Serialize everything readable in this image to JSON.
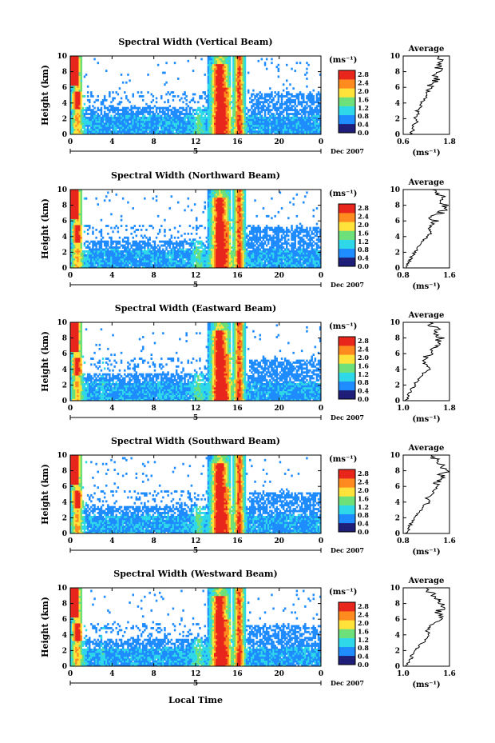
{
  "x_axis_label": "Local Time",
  "colors": {
    "low": "#1e1e78",
    "mid": "#1e8cff",
    "cyan": "#2ed8e8",
    "green": "#6ee07a",
    "yellow": "#ffe23a",
    "orange": "#ff8a1e",
    "high": "#e8261c"
  },
  "chart_data": [
    {
      "type": "heatmap",
      "title": "Spectral Width (Vertical Beam)",
      "ylabel": "Height (km)",
      "xlabel": "Local Time",
      "x_ticks": [
        "0",
        "4",
        "8",
        "12",
        "16",
        "20",
        "0"
      ],
      "xlim": [
        0,
        24
      ],
      "y_ticks": [
        "0",
        "2",
        "4",
        "6",
        "8",
        "10"
      ],
      "ylim": [
        0,
        10
      ],
      "date_marker": "5",
      "date_label": "Dec 2007",
      "colorbar": {
        "unit": "(ms⁻¹)",
        "ticks": [
          "0.0",
          "0.4",
          "0.8",
          "1.2",
          "1.6",
          "2.0",
          "2.4",
          "2.8"
        ],
        "range": [
          0.0,
          3.0
        ]
      },
      "average": {
        "title": "Average",
        "xlabel": "(ms⁻¹)",
        "x_ticks": [
          "0.6",
          "1.8"
        ],
        "xlim": [
          0.6,
          1.8
        ],
        "y_ticks": [
          "0",
          "2",
          "4",
          "6",
          "8",
          "10"
        ],
        "heights": [
          0,
          0.5,
          1,
          1.5,
          2,
          2.5,
          3,
          3.5,
          4,
          4.5,
          5,
          5.5,
          6,
          6.5,
          7,
          7.5,
          8,
          8.5,
          9,
          9.5,
          10
        ],
        "values": [
          0.75,
          0.9,
          0.85,
          0.95,
          0.9,
          1.0,
          0.95,
          1.1,
          1.05,
          1.15,
          1.2,
          1.25,
          1.35,
          1.3,
          1.5,
          1.4,
          1.6,
          1.5,
          1.55,
          1.6,
          1.5
        ]
      }
    },
    {
      "type": "heatmap",
      "title": "Spectral Width (Northward Beam)",
      "ylabel": "Height (km)",
      "xlabel": "Local Time",
      "x_ticks": [
        "0",
        "4",
        "8",
        "12",
        "16",
        "20",
        "0"
      ],
      "xlim": [
        0,
        24
      ],
      "y_ticks": [
        "0",
        "2",
        "4",
        "6",
        "8",
        "10"
      ],
      "ylim": [
        0,
        10
      ],
      "date_marker": "5",
      "date_label": "Dec 2007",
      "colorbar": {
        "unit": "(ms⁻¹)",
        "ticks": [
          "0.0",
          "0.4",
          "0.8",
          "1.2",
          "1.6",
          "2.0",
          "2.4",
          "2.8"
        ],
        "range": [
          0.0,
          3.0
        ]
      },
      "average": {
        "title": "Average",
        "xlabel": "(ms⁻¹)",
        "x_ticks": [
          "0.8",
          "1.6"
        ],
        "xlim": [
          0.8,
          1.6
        ],
        "y_ticks": [
          "0",
          "2",
          "4",
          "6",
          "8",
          "10"
        ],
        "heights": [
          0,
          0.5,
          1,
          1.5,
          2,
          2.5,
          3,
          3.5,
          4,
          4.5,
          5,
          5.5,
          6,
          6.5,
          7,
          7.5,
          8,
          8.5,
          9,
          9.5,
          10
        ],
        "values": [
          0.85,
          0.88,
          0.92,
          0.95,
          1.0,
          1.05,
          1.1,
          1.15,
          1.2,
          1.3,
          1.25,
          1.3,
          1.35,
          1.3,
          1.45,
          1.5,
          1.55,
          1.45,
          1.5,
          1.35,
          1.3
        ]
      }
    },
    {
      "type": "heatmap",
      "title": "Spectral Width (Eastward Beam)",
      "ylabel": "Height (km)",
      "xlabel": "Local Time",
      "x_ticks": [
        "0",
        "4",
        "8",
        "12",
        "16",
        "20",
        "0"
      ],
      "xlim": [
        0,
        24
      ],
      "y_ticks": [
        "0",
        "2",
        "4",
        "6",
        "8",
        "10"
      ],
      "ylim": [
        0,
        10
      ],
      "date_marker": "5",
      "date_label": "Dec 2007",
      "colorbar": {
        "unit": "(ms⁻¹)",
        "ticks": [
          "0.0",
          "0.4",
          "0.8",
          "1.2",
          "1.6",
          "2.0",
          "2.4",
          "2.8"
        ],
        "range": [
          0.0,
          3.0
        ]
      },
      "average": {
        "title": "Average",
        "xlabel": "(ms⁻¹)",
        "x_ticks": [
          "1.0",
          "1.8"
        ],
        "xlim": [
          1.0,
          1.8
        ],
        "y_ticks": [
          "0",
          "2",
          "4",
          "6",
          "8",
          "10"
        ],
        "heights": [
          0,
          0.5,
          1,
          1.5,
          2,
          2.5,
          3,
          3.5,
          4,
          4.5,
          5,
          5.5,
          6,
          6.5,
          7,
          7.5,
          8,
          8.5,
          9,
          9.5,
          10
        ],
        "values": [
          1.05,
          1.08,
          1.1,
          1.15,
          1.2,
          1.25,
          1.3,
          1.35,
          1.45,
          1.4,
          1.35,
          1.4,
          1.45,
          1.5,
          1.55,
          1.6,
          1.65,
          1.55,
          1.6,
          1.5,
          1.45
        ]
      }
    },
    {
      "type": "heatmap",
      "title": "Spectral Width (Southward Beam)",
      "ylabel": "Height (km)",
      "xlabel": "Local Time",
      "x_ticks": [
        "0",
        "4",
        "8",
        "12",
        "16",
        "20",
        "0"
      ],
      "xlim": [
        0,
        24
      ],
      "y_ticks": [
        "0",
        "2",
        "4",
        "6",
        "8",
        "10"
      ],
      "ylim": [
        0,
        10
      ],
      "date_marker": "5",
      "date_label": "Dec 2007",
      "colorbar": {
        "unit": "(ms⁻¹)",
        "ticks": [
          "0.0",
          "0.4",
          "0.8",
          "1.2",
          "1.6",
          "2.0",
          "2.4",
          "2.8"
        ],
        "range": [
          0.0,
          3.0
        ]
      },
      "average": {
        "title": "Average",
        "xlabel": "(ms⁻¹)",
        "x_ticks": [
          "0.8",
          "1.6"
        ],
        "xlim": [
          0.8,
          1.6
        ],
        "y_ticks": [
          "0",
          "2",
          "4",
          "6",
          "8",
          "10"
        ],
        "heights": [
          0,
          0.5,
          1,
          1.5,
          2,
          2.5,
          3,
          3.5,
          4,
          4.5,
          5,
          5.5,
          6,
          6.5,
          7,
          7.5,
          8,
          8.5,
          9,
          9.5,
          10
        ],
        "values": [
          0.85,
          0.9,
          0.92,
          0.95,
          1.0,
          1.05,
          1.1,
          1.15,
          1.25,
          1.2,
          1.3,
          1.35,
          1.4,
          1.35,
          1.5,
          1.45,
          1.55,
          1.5,
          1.45,
          1.35,
          1.3
        ]
      }
    },
    {
      "type": "heatmap",
      "title": "Spectral Width (Westward Beam)",
      "ylabel": "Height (km)",
      "xlabel": "Local Time",
      "x_ticks": [
        "0",
        "4",
        "8",
        "12",
        "16",
        "20",
        "0"
      ],
      "xlim": [
        0,
        24
      ],
      "y_ticks": [
        "0",
        "2",
        "4",
        "6",
        "8",
        "10"
      ],
      "ylim": [
        0,
        10
      ],
      "date_marker": "5",
      "date_label": "Dec 2007",
      "colorbar": {
        "unit": "(ms⁻¹)",
        "ticks": [
          "0.0",
          "0.4",
          "0.8",
          "1.2",
          "1.6",
          "2.0",
          "2.4",
          "2.8"
        ],
        "range": [
          0.0,
          3.0
        ]
      },
      "average": {
        "title": "Average",
        "xlabel": "(ms⁻¹)",
        "x_ticks": [
          "1.0",
          "1.6"
        ],
        "xlim": [
          1.0,
          1.6
        ],
        "y_ticks": [
          "0",
          "2",
          "4",
          "6",
          "8",
          "10"
        ],
        "heights": [
          0,
          0.5,
          1,
          1.5,
          2,
          2.5,
          3,
          3.5,
          4,
          4.5,
          5,
          5.5,
          6,
          6.5,
          7,
          7.5,
          8,
          8.5,
          9,
          9.5,
          10
        ],
        "values": [
          1.05,
          1.07,
          1.1,
          1.12,
          1.15,
          1.2,
          1.25,
          1.3,
          1.35,
          1.3,
          1.35,
          1.4,
          1.45,
          1.5,
          1.45,
          1.55,
          1.5,
          1.45,
          1.4,
          1.35,
          1.3
        ]
      }
    }
  ]
}
